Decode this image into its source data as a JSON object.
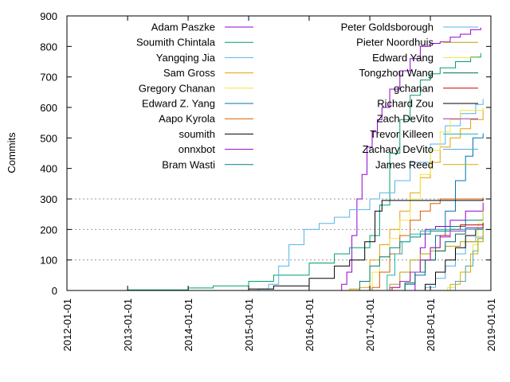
{
  "chart_data": {
    "type": "line",
    "title": "",
    "xlabel": "",
    "ylabel": "Commits",
    "xlim": [
      "2012-01-01",
      "2019-01-01"
    ],
    "ylim": [
      0,
      900
    ],
    "y_ticks": [
      0,
      100,
      200,
      300,
      400,
      500,
      600,
      700,
      800,
      900
    ],
    "x_ticks": [
      "2012-01-01",
      "2013-01-01",
      "2014-01-01",
      "2015-01-01",
      "2016-01-01",
      "2017-01-01",
      "2018-01-01",
      "2019-01-01"
    ],
    "grid": {
      "y_values": [
        100,
        200,
        300
      ],
      "style": "dotted"
    },
    "legend_position": "top",
    "series": [
      {
        "name": "Adam Paszke",
        "color": "#9400d3",
        "points": [
          [
            "2016-06-15",
            0
          ],
          [
            "2016-07-15",
            20
          ],
          [
            "2016-08-15",
            60
          ],
          [
            "2016-09-15",
            180
          ],
          [
            "2016-10-15",
            300
          ],
          [
            "2016-11-15",
            380
          ],
          [
            "2016-12-15",
            470
          ],
          [
            "2017-01-15",
            520
          ],
          [
            "2017-02-15",
            560
          ],
          [
            "2017-03-15",
            600
          ],
          [
            "2017-05-01",
            660
          ],
          [
            "2017-07-01",
            720
          ],
          [
            "2017-09-01",
            760
          ],
          [
            "2017-11-01",
            800
          ],
          [
            "2018-01-01",
            810
          ],
          [
            "2018-03-01",
            815
          ],
          [
            "2018-05-01",
            830
          ],
          [
            "2018-07-01",
            840
          ],
          [
            "2018-09-01",
            855
          ],
          [
            "2018-11-01",
            862
          ]
        ]
      },
      {
        "name": "Soumith Chintala",
        "color": "#009e73",
        "points": [
          [
            "2012-06-01",
            0
          ],
          [
            "2013-01-01",
            2
          ],
          [
            "2014-01-01",
            8
          ],
          [
            "2014-06-01",
            15
          ],
          [
            "2015-01-01",
            30
          ],
          [
            "2015-06-01",
            50
          ],
          [
            "2016-01-01",
            90
          ],
          [
            "2016-06-01",
            120
          ],
          [
            "2016-09-01",
            140
          ],
          [
            "2017-01-01",
            180
          ],
          [
            "2017-03-01",
            280
          ],
          [
            "2017-05-01",
            450
          ],
          [
            "2017-07-01",
            560
          ],
          [
            "2017-09-01",
            640
          ],
          [
            "2017-11-01",
            690
          ],
          [
            "2018-01-01",
            710
          ],
          [
            "2018-03-01",
            730
          ],
          [
            "2018-06-01",
            750
          ],
          [
            "2018-09-01",
            765
          ],
          [
            "2018-11-01",
            778
          ]
        ]
      },
      {
        "name": "Yangqing Jia",
        "color": "#56b4e9",
        "points": [
          [
            "2015-01-01",
            0
          ],
          [
            "2015-03-01",
            5
          ],
          [
            "2015-05-01",
            20
          ],
          [
            "2015-07-01",
            80
          ],
          [
            "2015-09-01",
            150
          ],
          [
            "2015-12-01",
            200
          ],
          [
            "2016-03-01",
            220
          ],
          [
            "2016-06-01",
            240
          ],
          [
            "2016-09-01",
            265
          ],
          [
            "2017-01-01",
            300
          ],
          [
            "2017-03-01",
            320
          ],
          [
            "2017-06-01",
            360
          ],
          [
            "2017-09-01",
            420
          ],
          [
            "2018-01-01",
            480
          ],
          [
            "2018-04-01",
            540
          ],
          [
            "2018-07-01",
            580
          ],
          [
            "2018-10-01",
            610
          ],
          [
            "2018-11-15",
            628
          ]
        ]
      },
      {
        "name": "Sam Gross",
        "color": "#e69f00",
        "points": [
          [
            "2016-07-01",
            0
          ],
          [
            "2016-09-01",
            5
          ],
          [
            "2016-11-01",
            10
          ],
          [
            "2017-01-01",
            100
          ],
          [
            "2017-03-01",
            150
          ],
          [
            "2017-05-01",
            200
          ],
          [
            "2017-07-01",
            260
          ],
          [
            "2017-09-01",
            320
          ],
          [
            "2017-11-01",
            370
          ],
          [
            "2018-01-01",
            420
          ],
          [
            "2018-03-01",
            470
          ],
          [
            "2018-05-01",
            500
          ],
          [
            "2018-07-01",
            530
          ],
          [
            "2018-09-01",
            560
          ],
          [
            "2018-11-15",
            595
          ]
        ]
      },
      {
        "name": "Gregory Chanan",
        "color": "#f0e442",
        "points": [
          [
            "2016-12-01",
            0
          ],
          [
            "2017-01-15",
            60
          ],
          [
            "2017-03-01",
            110
          ],
          [
            "2017-05-01",
            170
          ],
          [
            "2017-07-01",
            230
          ],
          [
            "2017-09-01",
            300
          ],
          [
            "2017-11-01",
            380
          ],
          [
            "2018-01-01",
            460
          ],
          [
            "2018-03-01",
            520
          ],
          [
            "2018-05-01",
            560
          ],
          [
            "2018-07-01",
            590
          ],
          [
            "2018-11-15",
            600
          ]
        ]
      },
      {
        "name": "Edward Z. Yang",
        "color": "#0072b2",
        "points": [
          [
            "2017-06-01",
            0
          ],
          [
            "2017-08-01",
            20
          ],
          [
            "2017-10-01",
            50
          ],
          [
            "2017-12-01",
            100
          ],
          [
            "2018-02-01",
            180
          ],
          [
            "2018-04-01",
            260
          ],
          [
            "2018-06-01",
            360
          ],
          [
            "2018-08-01",
            440
          ],
          [
            "2018-09-15",
            500
          ],
          [
            "2018-11-15",
            515
          ]
        ]
      },
      {
        "name": "Aapo Kyrola",
        "color": "#d55e00",
        "points": [
          [
            "2016-12-15",
            0
          ],
          [
            "2017-01-15",
            10
          ],
          [
            "2017-03-01",
            60
          ],
          [
            "2017-05-01",
            120
          ],
          [
            "2017-07-01",
            180
          ],
          [
            "2017-09-01",
            230
          ],
          [
            "2017-11-01",
            260
          ],
          [
            "2018-01-01",
            285
          ],
          [
            "2018-03-01",
            300
          ],
          [
            "2018-11-15",
            305
          ]
        ]
      },
      {
        "name": "soumith",
        "color": "#000000",
        "points": [
          [
            "2014-06-01",
            0
          ],
          [
            "2015-01-01",
            5
          ],
          [
            "2015-06-01",
            15
          ],
          [
            "2016-01-01",
            40
          ],
          [
            "2016-06-01",
            80
          ],
          [
            "2016-09-01",
            100
          ],
          [
            "2016-12-01",
            160
          ],
          [
            "2017-02-01",
            260
          ],
          [
            "2017-03-15",
            295
          ],
          [
            "2018-11-15",
            300
          ]
        ]
      },
      {
        "name": "onnxbot",
        "color": "#9400d3",
        "points": [
          [
            "2017-09-01",
            0
          ],
          [
            "2017-10-01",
            60
          ],
          [
            "2017-11-01",
            140
          ],
          [
            "2017-12-01",
            200
          ],
          [
            "2018-02-01",
            210
          ],
          [
            "2018-05-01",
            230
          ],
          [
            "2018-08-01",
            260
          ],
          [
            "2018-11-15",
            288
          ]
        ]
      },
      {
        "name": "Bram Wasti",
        "color": "#008080",
        "points": [
          [
            "2016-09-01",
            0
          ],
          [
            "2016-11-01",
            30
          ],
          [
            "2017-01-01",
            80
          ],
          [
            "2017-03-01",
            110
          ],
          [
            "2017-05-01",
            140
          ],
          [
            "2017-07-01",
            160
          ],
          [
            "2017-09-01",
            175
          ],
          [
            "2017-11-01",
            185
          ],
          [
            "2018-01-01",
            195
          ],
          [
            "2018-05-01",
            210
          ],
          [
            "2018-08-01",
            230
          ],
          [
            "2018-11-15",
            258
          ]
        ]
      },
      {
        "name": "Peter Goldsborough",
        "color": "#56b4e9",
        "points": [
          [
            "2017-10-01",
            0
          ],
          [
            "2017-12-01",
            10
          ],
          [
            "2018-02-01",
            40
          ],
          [
            "2018-04-01",
            80
          ],
          [
            "2018-06-01",
            120
          ],
          [
            "2018-08-01",
            160
          ],
          [
            "2018-10-01",
            175
          ],
          [
            "2018-11-15",
            185
          ]
        ]
      },
      {
        "name": "Pieter Noordhuis",
        "color": "#b8a000",
        "points": [
          [
            "2017-03-01",
            0
          ],
          [
            "2017-05-01",
            20
          ],
          [
            "2017-07-01",
            60
          ],
          [
            "2017-09-01",
            100
          ],
          [
            "2017-11-01",
            120
          ],
          [
            "2018-01-01",
            130
          ],
          [
            "2018-04-01",
            145
          ],
          [
            "2018-07-01",
            160
          ],
          [
            "2018-11-15",
            175
          ]
        ]
      },
      {
        "name": "Edward Yang",
        "color": "#f0e442",
        "points": [
          [
            "2018-03-01",
            0
          ],
          [
            "2018-04-15",
            10
          ],
          [
            "2018-06-01",
            30
          ],
          [
            "2018-08-01",
            80
          ],
          [
            "2018-09-15",
            150
          ],
          [
            "2018-10-15",
            220
          ],
          [
            "2018-11-15",
            260
          ]
        ]
      },
      {
        "name": "Tongzhou Wang",
        "color": "#006d5b",
        "points": [
          [
            "2017-06-01",
            0
          ],
          [
            "2017-08-01",
            25
          ],
          [
            "2017-10-01",
            60
          ],
          [
            "2017-12-01",
            100
          ],
          [
            "2018-02-01",
            130
          ],
          [
            "2018-04-01",
            160
          ],
          [
            "2018-06-01",
            185
          ],
          [
            "2018-08-01",
            205
          ],
          [
            "2018-11-15",
            222
          ]
        ]
      },
      {
        "name": "gchanan",
        "color": "#d00000",
        "points": [
          [
            "2017-04-01",
            0
          ],
          [
            "2017-05-15",
            10
          ],
          [
            "2017-07-01",
            30
          ],
          [
            "2017-09-01",
            60
          ],
          [
            "2017-11-01",
            100
          ],
          [
            "2018-01-01",
            140
          ],
          [
            "2018-03-01",
            180
          ],
          [
            "2018-05-01",
            200
          ],
          [
            "2018-07-01",
            215
          ],
          [
            "2018-11-15",
            220
          ]
        ]
      },
      {
        "name": "Richard Zou",
        "color": "#000000",
        "points": [
          [
            "2017-10-01",
            0
          ],
          [
            "2017-12-01",
            20
          ],
          [
            "2018-02-01",
            60
          ],
          [
            "2018-04-01",
            100
          ],
          [
            "2018-06-01",
            140
          ],
          [
            "2018-08-01",
            180
          ],
          [
            "2018-10-01",
            200
          ],
          [
            "2018-11-15",
            210
          ]
        ]
      },
      {
        "name": "Zach DeVito",
        "color": "#9932cc",
        "points": [
          [
            "2017-03-01",
            0
          ],
          [
            "2017-05-01",
            10
          ],
          [
            "2017-07-01",
            30
          ],
          [
            "2017-09-01",
            60
          ],
          [
            "2017-11-01",
            100
          ],
          [
            "2018-01-01",
            140
          ],
          [
            "2018-03-01",
            175
          ],
          [
            "2018-05-01",
            195
          ],
          [
            "2018-08-01",
            205
          ],
          [
            "2018-11-15",
            212
          ]
        ]
      },
      {
        "name": "Trevor Killeen",
        "color": "#20b2aa",
        "points": [
          [
            "2017-03-01",
            0
          ],
          [
            "2017-04-15",
            50
          ],
          [
            "2017-06-01",
            120
          ],
          [
            "2017-07-15",
            160
          ],
          [
            "2017-09-01",
            185
          ],
          [
            "2017-11-01",
            195
          ],
          [
            "2018-01-01",
            200
          ],
          [
            "2018-11-15",
            202
          ]
        ]
      },
      {
        "name": "Zachary DeVito",
        "color": "#4fa3d1",
        "points": [
          [
            "2018-04-01",
            0
          ],
          [
            "2018-06-01",
            30
          ],
          [
            "2018-08-01",
            80
          ],
          [
            "2018-09-15",
            130
          ],
          [
            "2018-10-15",
            170
          ],
          [
            "2018-11-15",
            200
          ]
        ]
      },
      {
        "name": "James Reed",
        "color": "#c8b400",
        "points": [
          [
            "2018-03-01",
            0
          ],
          [
            "2018-05-01",
            20
          ],
          [
            "2018-07-01",
            60
          ],
          [
            "2018-09-01",
            120
          ],
          [
            "2018-10-15",
            170
          ],
          [
            "2018-11-15",
            205
          ]
        ]
      }
    ]
  }
}
